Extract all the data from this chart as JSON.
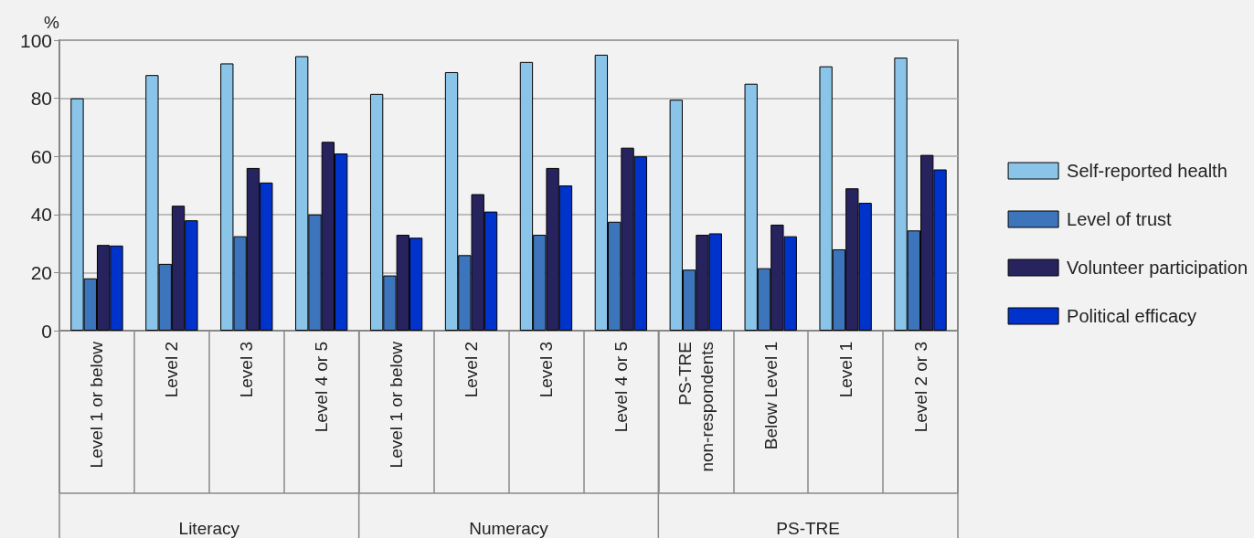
{
  "chart_data": {
    "type": "bar",
    "ylabel": "%",
    "categories": [
      "Level 1 or below",
      "Level 2",
      "Level 3",
      "Level 4 or 5",
      "Level 1 or below",
      "Level 2",
      "Level 3",
      "Level 4 or 5",
      "PS-TRE\nnon-respondents",
      "Below Level 1",
      "Level 1",
      "Level 2 or 3"
    ],
    "annotations": [
      "Literacy",
      "Numeracy",
      "PS-TRE"
    ],
    "series": [
      {
        "name": "Self-reported health",
        "color": "#8ac4e8",
        "values": [
          80,
          88,
          92,
          94.5,
          81.5,
          89,
          92.5,
          95,
          79.5,
          85,
          91,
          94
        ]
      },
      {
        "name": "Level of trust",
        "color": "#3d75bc",
        "values": [
          18,
          23,
          32.5,
          40,
          19,
          26,
          33,
          37.5,
          21,
          21.5,
          28,
          34.5
        ]
      },
      {
        "name": "Volunteer participation",
        "color": "#27235f",
        "values": [
          29.5,
          43,
          56,
          65,
          33,
          47,
          56,
          63,
          33,
          36.5,
          49,
          60.5
        ]
      },
      {
        "name": "Political efficacy",
        "color": "#0033cc",
        "values": [
          29.3,
          38,
          51,
          61,
          32,
          41,
          50,
          60,
          33.5,
          32.5,
          44,
          55.5
        ]
      }
    ],
    "ylim": [
      0,
      100
    ],
    "yticks": [
      0,
      20,
      40,
      60,
      80,
      100
    ],
    "grid": "y",
    "legend": "right"
  }
}
